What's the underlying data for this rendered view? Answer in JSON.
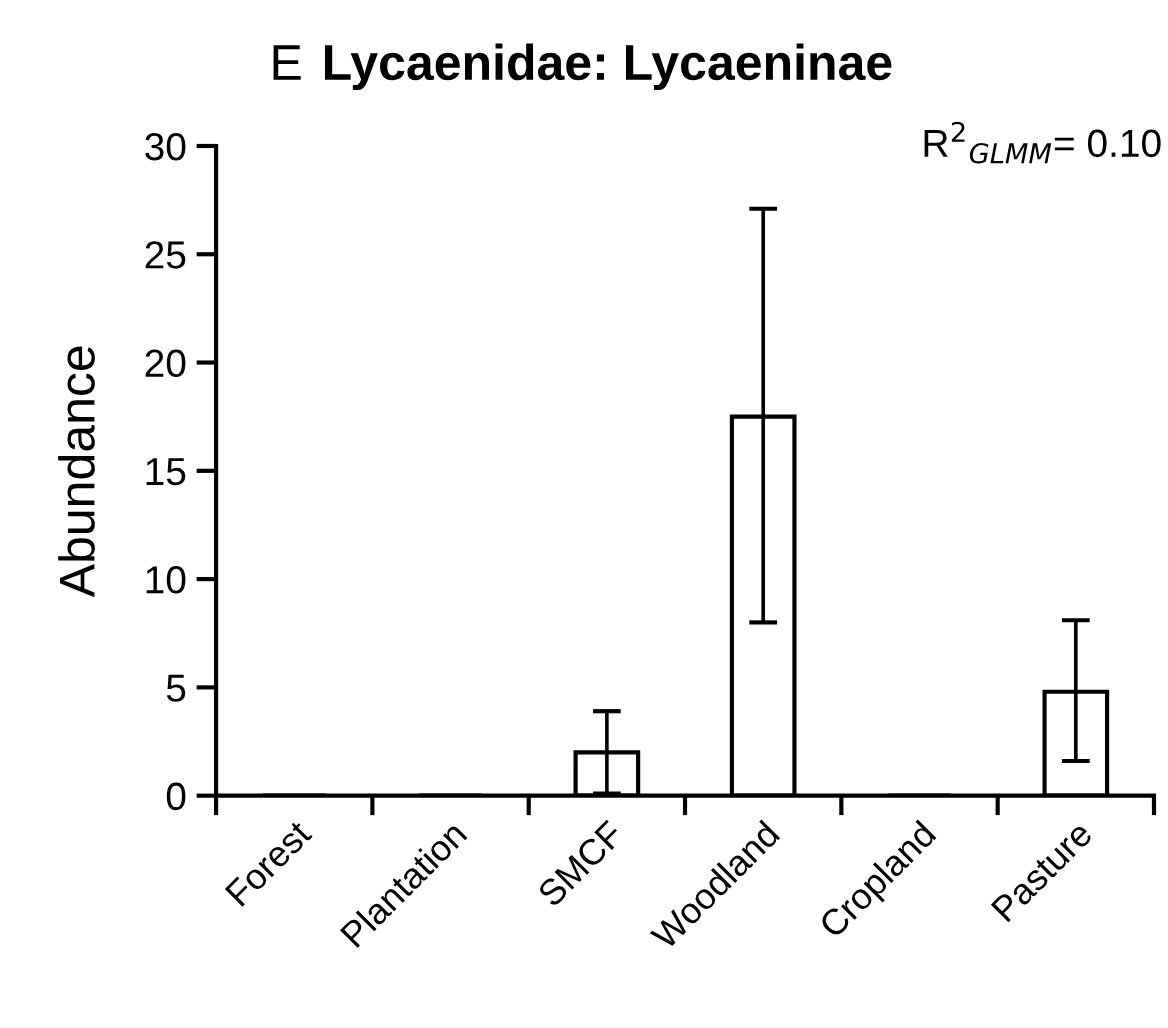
{
  "chart_data": {
    "type": "bar",
    "title": "Lycaenidae: Lycaeninae",
    "ylabel": "Abundance",
    "categories": [
      "Forest",
      "Plantation",
      "SMCF",
      "Woodland",
      "Cropland",
      "Pasture"
    ],
    "values": [
      0,
      0,
      2.0,
      17.5,
      0,
      4.8
    ],
    "errors": [
      null,
      null,
      [
        0.1,
        3.9
      ],
      [
        8.0,
        27.1
      ],
      null,
      [
        1.6,
        8.1
      ]
    ],
    "color": "#ffffff",
    "ylim": [
      0,
      30
    ],
    "yticks": [
      0,
      5,
      10,
      15,
      20,
      25,
      30
    ],
    "grid": false,
    "legend": false,
    "annotations": [
      "E",
      "R$^{2}$$_{GLMM}$= 0.10"
    ]
  }
}
